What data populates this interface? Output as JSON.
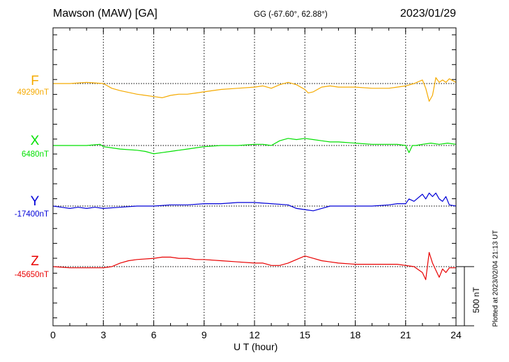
{
  "header": {
    "station": "Mawson (MAW)  [GA]",
    "coords": "GG (-67.60°,  62.88°)",
    "date": "2023/01/29"
  },
  "footer": {
    "scale_label": "500 nT",
    "plotted": "Plotted at 2023/02/04 21:13 UT"
  },
  "colors": {
    "F": "#f5aa00",
    "X": "#00e000",
    "Y": "#0000d8",
    "Z": "#e80000"
  },
  "chart_data": {
    "type": "line",
    "xlabel": "U T (hour)",
    "xlim": [
      0,
      24
    ],
    "xticks": [
      "0",
      "3",
      "6",
      "9",
      "12",
      "15",
      "18",
      "21",
      "24"
    ],
    "ylabel": "",
    "scale_bar_nT": 500,
    "grid": "dotted vertical every 3 h",
    "series": [
      {
        "name": "F",
        "baseline_label": "49290nT",
        "baseline": 49290,
        "x": [
          0,
          1,
          2,
          3,
          3.5,
          4,
          5,
          5.5,
          6,
          6.5,
          7,
          7.5,
          8,
          8.5,
          9,
          10,
          11,
          12,
          12.5,
          13,
          13.5,
          14,
          14.5,
          15,
          15.2,
          15.5,
          16,
          16.5,
          17,
          18,
          19,
          20,
          20.5,
          21,
          21.5,
          22,
          22.2,
          22.4,
          22.6,
          22.8,
          23,
          23.2,
          23.4,
          23.6,
          24
        ],
        "y": [
          49290,
          49290,
          49300,
          49290,
          49250,
          49230,
          49200,
          49190,
          49180,
          49170,
          49190,
          49200,
          49200,
          49210,
          49220,
          49240,
          49250,
          49260,
          49270,
          49250,
          49280,
          49300,
          49280,
          49240,
          49210,
          49220,
          49260,
          49270,
          49260,
          49260,
          49250,
          49250,
          49260,
          49270,
          49290,
          49320,
          49250,
          49140,
          49190,
          49340,
          49300,
          49320,
          49300,
          49330,
          49300
        ]
      },
      {
        "name": "X",
        "baseline_label": "6480nT",
        "baseline": 6480,
        "x": [
          0,
          1,
          2,
          2.8,
          3,
          3.5,
          4,
          5,
          5.5,
          6,
          6.5,
          7,
          7.5,
          8,
          8.5,
          9,
          10,
          11,
          12,
          12.5,
          13,
          13.5,
          14,
          14.5,
          15,
          15.5,
          16,
          16.5,
          17,
          18,
          19,
          20,
          20.5,
          21,
          21.2,
          21.4,
          21.6,
          22,
          22.5,
          23,
          23.5,
          24
        ],
        "y": [
          6480,
          6480,
          6480,
          6490,
          6470,
          6460,
          6450,
          6440,
          6430,
          6410,
          6420,
          6430,
          6440,
          6450,
          6460,
          6470,
          6480,
          6480,
          6490,
          6490,
          6480,
          6520,
          6540,
          6530,
          6540,
          6530,
          6520,
          6510,
          6510,
          6500,
          6490,
          6490,
          6490,
          6480,
          6420,
          6480,
          6480,
          6490,
          6500,
          6490,
          6500,
          6490
        ]
      },
      {
        "name": "Y",
        "baseline_label": "-17400nT",
        "baseline": -17400,
        "x": [
          0,
          0.5,
          1,
          1.5,
          2,
          2.5,
          3,
          4,
          5,
          6,
          7,
          8,
          9,
          10,
          11,
          12,
          13,
          14,
          14.5,
          15,
          15.5,
          16,
          16.5,
          17,
          18,
          19,
          20,
          20.5,
          21,
          21.2,
          21.5,
          22,
          22.2,
          22.4,
          22.6,
          22.8,
          23,
          23.2,
          23.4,
          23.6,
          24
        ],
        "y": [
          -17400,
          -17410,
          -17420,
          -17410,
          -17420,
          -17410,
          -17420,
          -17410,
          -17400,
          -17400,
          -17390,
          -17390,
          -17380,
          -17380,
          -17370,
          -17370,
          -17380,
          -17390,
          -17420,
          -17430,
          -17440,
          -17420,
          -17400,
          -17400,
          -17400,
          -17400,
          -17390,
          -17380,
          -17380,
          -17340,
          -17360,
          -17300,
          -17340,
          -17290,
          -17320,
          -17290,
          -17340,
          -17360,
          -17320,
          -17390,
          -17400
        ]
      },
      {
        "name": "Z",
        "baseline_label": "-45650nT",
        "baseline": -45650,
        "x": [
          0,
          1,
          2,
          3,
          3.5,
          4,
          4.5,
          5,
          6,
          6.5,
          7,
          7.5,
          8,
          8.5,
          9,
          10,
          11,
          12,
          12.5,
          13,
          13.5,
          14,
          14.5,
          15,
          15.5,
          16,
          16.5,
          17,
          18,
          19,
          20,
          20.5,
          21,
          21.5,
          22,
          22.2,
          22.4,
          22.6,
          22.8,
          23,
          23.2,
          23.4,
          23.6,
          24
        ],
        "y": [
          -45650,
          -45660,
          -45660,
          -45660,
          -45650,
          -45620,
          -45600,
          -45590,
          -45580,
          -45570,
          -45570,
          -45580,
          -45580,
          -45590,
          -45590,
          -45600,
          -45610,
          -45620,
          -45620,
          -45640,
          -45640,
          -45620,
          -45590,
          -45560,
          -45580,
          -45600,
          -45610,
          -45620,
          -45630,
          -45630,
          -45630,
          -45630,
          -45640,
          -45650,
          -45700,
          -45760,
          -45530,
          -45620,
          -45680,
          -45740,
          -45670,
          -45700,
          -45660,
          -45660
        ]
      }
    ]
  }
}
